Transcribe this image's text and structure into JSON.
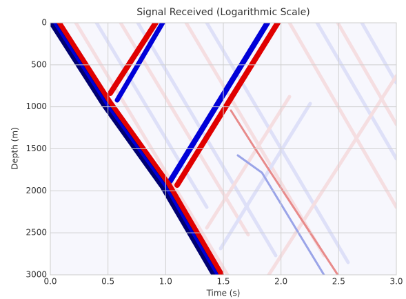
{
  "chart_data": {
    "type": "heatmap",
    "title": "Signal Received (Logarithmic Scale)",
    "x_label": "Time (s)",
    "y_label": "Depth (m)",
    "xlim": [
      0,
      3
    ],
    "ylim": [
      3000,
      0
    ],
    "xticks": [
      {
        "value": 0,
        "label": "0.0"
      },
      0.5,
      {
        "value": 1,
        "label": "1.0"
      },
      1.5,
      {
        "value": 2,
        "label": "2.0"
      },
      2.5,
      {
        "value": 3,
        "label": "3.0"
      }
    ],
    "yticks": [
      0,
      500,
      1000,
      1500,
      2000,
      2500,
      3000
    ],
    "grid": true
  }
}
